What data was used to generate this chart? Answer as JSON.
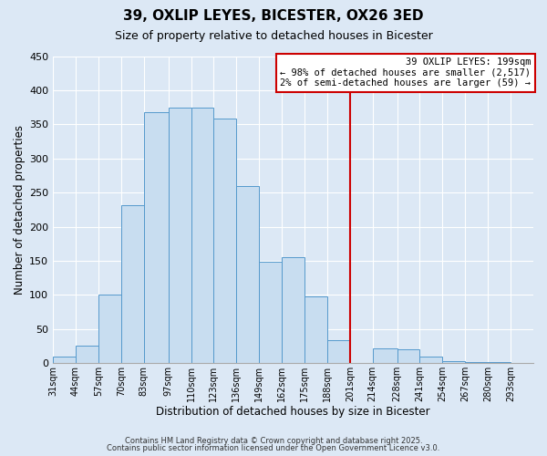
{
  "title": "39, OXLIP LEYES, BICESTER, OX26 3ED",
  "subtitle": "Size of property relative to detached houses in Bicester",
  "xlabel": "Distribution of detached houses by size in Bicester",
  "ylabel": "Number of detached properties",
  "bin_labels": [
    "31sqm",
    "44sqm",
    "57sqm",
    "70sqm",
    "83sqm",
    "97sqm",
    "110sqm",
    "123sqm",
    "136sqm",
    "149sqm",
    "162sqm",
    "175sqm",
    "188sqm",
    "201sqm",
    "214sqm",
    "228sqm",
    "241sqm",
    "254sqm",
    "267sqm",
    "280sqm",
    "293sqm"
  ],
  "bin_edges": [
    31,
    44,
    57,
    70,
    83,
    97,
    110,
    123,
    136,
    149,
    162,
    175,
    188,
    201,
    214,
    228,
    241,
    254,
    267,
    280,
    293
  ],
  "bar_heights": [
    10,
    25,
    100,
    232,
    368,
    375,
    375,
    358,
    260,
    148,
    155,
    98,
    33,
    0,
    22,
    20,
    10,
    3,
    2,
    1,
    0
  ],
  "bar_color": "#c8ddf0",
  "bar_edge_color": "#5599cc",
  "vline_x": 201,
  "vline_color": "#cc0000",
  "annotation_title": "39 OXLIP LEYES: 199sqm",
  "annotation_line1": "← 98% of detached houses are smaller (2,517)",
  "annotation_line2": "2% of semi-detached houses are larger (59) →",
  "annotation_box_color": "#ffffff",
  "annotation_box_edge": "#cc0000",
  "ylim": [
    0,
    450
  ],
  "yticks": [
    0,
    50,
    100,
    150,
    200,
    250,
    300,
    350,
    400,
    450
  ],
  "footer1": "Contains HM Land Registry data © Crown copyright and database right 2025.",
  "footer2": "Contains public sector information licensed under the Open Government Licence v3.0.",
  "bg_color": "#dce8f5",
  "plot_bg_color": "#dce8f5",
  "grid_color": "#ffffff",
  "title_fontsize": 11,
  "subtitle_fontsize": 9
}
